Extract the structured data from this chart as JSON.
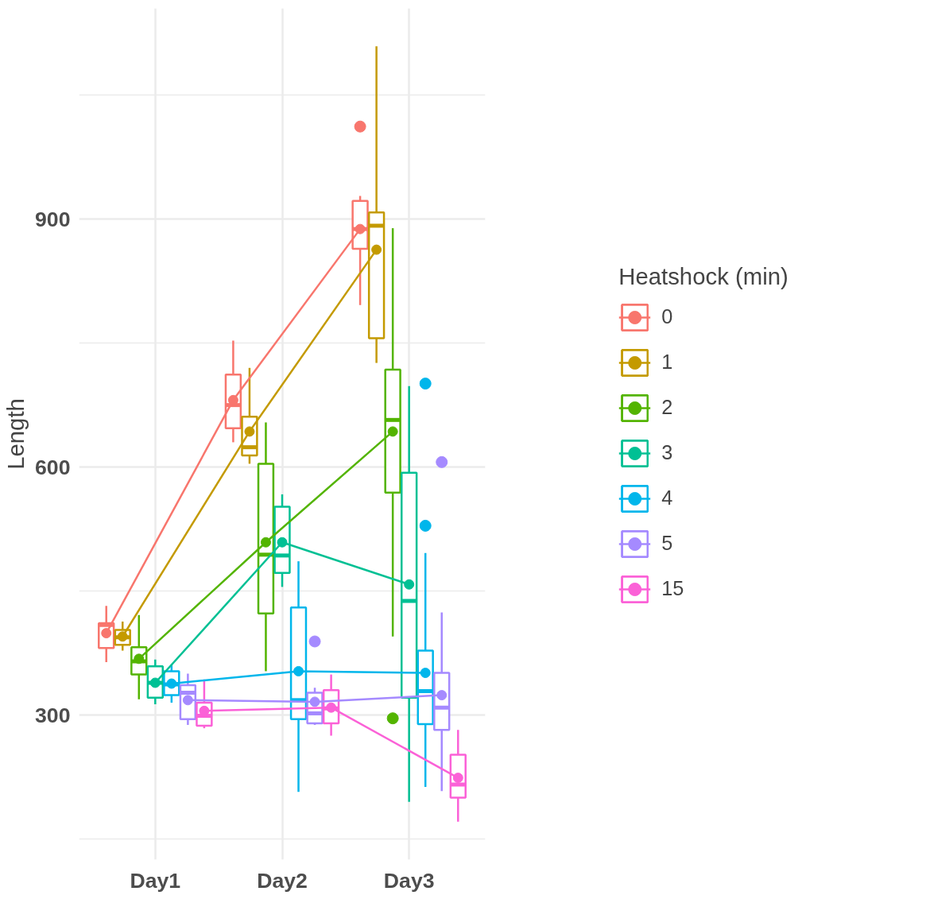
{
  "chart_data": {
    "type": "box",
    "ylabel": "Length",
    "legend_title": "Heatshock (min)",
    "legend": "right",
    "grid": true,
    "marker": "circle",
    "line_style": "solid",
    "categories": [
      "Day1",
      "Day2",
      "Day3"
    ],
    "ylim": [
      125,
      1155
    ],
    "yticks": [
      300,
      600,
      900
    ],
    "series": [
      {
        "name": "0",
        "color": "#f8766d",
        "boxes": [
          {
            "low": 364,
            "q1": 381,
            "median": 409,
            "q3": 411,
            "high": 432
          },
          {
            "low": 630,
            "q1": 647,
            "median": 675,
            "q3": 712,
            "high": 753
          },
          {
            "low": 796,
            "q1": 864,
            "median": 888,
            "q3": 922,
            "high": 928,
            "outliers": [
              1012
            ]
          }
        ]
      },
      {
        "name": "1",
        "color": "#c49a00",
        "boxes": [
          {
            "low": 378,
            "q1": 385,
            "median": 394,
            "q3": 403,
            "high": 413
          },
          {
            "low": 604,
            "q1": 614,
            "median": 624,
            "q3": 661,
            "high": 720
          },
          {
            "low": 726,
            "q1": 756,
            "median": 892,
            "q3": 908,
            "high": 1109
          }
        ]
      },
      {
        "name": "2",
        "color": "#53b400",
        "boxes": [
          {
            "low": 319,
            "q1": 349,
            "median": 365,
            "q3": 382,
            "high": 421
          },
          {
            "low": 353,
            "q1": 423,
            "median": 494,
            "q3": 604,
            "high": 654
          },
          {
            "low": 395,
            "q1": 569,
            "median": 657,
            "q3": 718,
            "high": 889,
            "outliers": [
              296
            ]
          }
        ]
      },
      {
        "name": "3",
        "color": "#00c094",
        "boxes": [
          {
            "low": 313,
            "q1": 321,
            "median": 339,
            "q3": 359,
            "high": 367
          },
          {
            "low": 455,
            "q1": 472,
            "median": 493,
            "q3": 552,
            "high": 567
          },
          {
            "low": 195,
            "q1": 321,
            "median": 438,
            "q3": 593,
            "high": 698
          }
        ]
      },
      {
        "name": "4",
        "color": "#00b6eb",
        "boxes": [
          {
            "low": 315,
            "q1": 324,
            "median": 337,
            "q3": 353,
            "high": 361
          },
          {
            "low": 207,
            "q1": 295,
            "median": 318,
            "q3": 430,
            "high": 486
          },
          {
            "low": 213,
            "q1": 289,
            "median": 329,
            "q3": 378,
            "high": 496,
            "outliers": [
              701,
              529
            ]
          }
        ]
      },
      {
        "name": "5",
        "color": "#a58aff",
        "boxes": [
          {
            "low": 288,
            "q1": 295,
            "median": 327,
            "q3": 336,
            "high": 350
          },
          {
            "low": 288,
            "q1": 290,
            "median": 302,
            "q3": 327,
            "high": 333,
            "outliers": [
              389
            ]
          },
          {
            "low": 208,
            "q1": 282,
            "median": 309,
            "q3": 351,
            "high": 424,
            "outliers": [
              606
            ]
          }
        ]
      },
      {
        "name": "15",
        "color": "#fb61d7",
        "boxes": [
          {
            "low": 284,
            "q1": 287,
            "median": 299,
            "q3": 315,
            "high": 343
          },
          {
            "low": 275,
            "q1": 290,
            "median": 308,
            "q3": 330,
            "high": 349
          },
          {
            "low": 171,
            "q1": 200,
            "median": 216,
            "q3": 252,
            "high": 282
          }
        ]
      },
      {
        "type": "line",
        "color": "#f8766d",
        "values": [
          399,
          681,
          888
        ]
      },
      {
        "type": "line",
        "color": "#c49a00",
        "values": [
          395,
          643,
          863
        ]
      },
      {
        "type": "line",
        "color": "#53b400",
        "values": [
          368,
          509,
          643
        ]
      },
      {
        "type": "line",
        "color": "#00c094",
        "values": [
          339,
          509,
          458
        ]
      },
      {
        "type": "line",
        "color": "#00b6eb",
        "values": [
          338,
          353,
          351
        ]
      },
      {
        "type": "line",
        "color": "#a58aff",
        "values": [
          318,
          316,
          324
        ]
      },
      {
        "type": "line",
        "color": "#fb61d7",
        "values": [
          305,
          309,
          224
        ]
      }
    ]
  }
}
